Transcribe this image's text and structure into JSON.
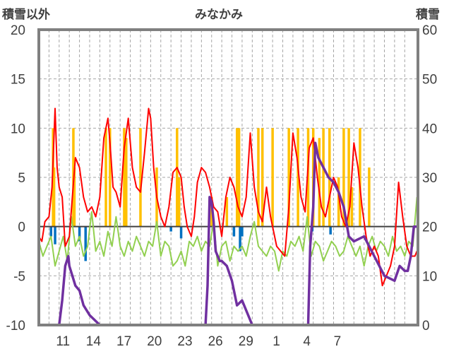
{
  "chart_data": {
    "type": "bar+line",
    "title": "みなかみ",
    "ylabel_left": "積雪以外",
    "ylabel_right": "積雪",
    "ylim_left": [
      -10,
      20
    ],
    "ylim_right": [
      0,
      60
    ],
    "yticks_left": [
      "20",
      "15",
      "10",
      "5",
      "0",
      "-5",
      "-10"
    ],
    "yticks_right": [
      "60",
      "50",
      "40",
      "30",
      "20",
      "10",
      "0"
    ],
    "xticks": [
      "11",
      "14",
      "17",
      "20",
      "23",
      "26",
      "29",
      "1",
      "4",
      "7"
    ],
    "grid": "dashed",
    "colors": {
      "red": "#ff0000",
      "green": "#92d050",
      "purple": "#7030a0",
      "orange": "#ffc000",
      "blue": "#0070c0",
      "axis": "#808080"
    },
    "series": [
      {
        "type": "bar",
        "axis": "left",
        "color": "#ffc000",
        "x": [
          1.4,
          1.5,
          3.4,
          3.5,
          6.6,
          7.0,
          8.4,
          8.6,
          10.0,
          11.6,
          13.6,
          13.8,
          17.0,
          18.5,
          19.5,
          19.7,
          21.6,
          22.0,
          23.0,
          24.6,
          25.5,
          26.5,
          27.0,
          27.6,
          28.0,
          28.6,
          29.5,
          30.0,
          30.5,
          30.8,
          31.6,
          32.5
        ],
        "values": [
          10,
          6,
          10,
          6,
          10,
          10,
          10,
          9,
          10,
          6,
          10,
          5,
          3,
          3,
          10,
          10,
          10,
          10,
          10,
          10,
          10,
          10,
          10,
          9,
          10,
          10,
          5,
          10,
          10,
          4,
          10,
          6
        ]
      },
      {
        "type": "bar",
        "axis": "left",
        "color": "#0070c0",
        "x": [
          1.2,
          1.6,
          4.0,
          4.6,
          13.0,
          14.0,
          19.2,
          19.8,
          20.0,
          26.9,
          28.7
        ],
        "values": [
          -1.0,
          -1.8,
          -1.5,
          -3.5,
          -0.5,
          -1.2,
          -1.0,
          -2.5,
          -1.0,
          -0.5,
          -0.8
        ]
      },
      {
        "type": "line",
        "axis": "left",
        "color": "#92d050",
        "x": [
          0.0,
          0.4,
          0.8,
          1.2,
          1.6,
          2.0,
          2.4,
          2.8,
          3.2,
          3.6,
          4.0,
          4.4,
          4.8,
          5.2,
          5.6,
          6.0,
          6.4,
          6.8,
          7.2,
          7.6,
          8.0,
          8.4,
          8.8,
          9.2,
          9.6,
          10.0,
          10.4,
          10.8,
          11.2,
          11.6,
          12.0,
          12.4,
          12.8,
          13.2,
          13.6,
          14.0,
          14.4,
          14.8,
          15.2,
          15.6,
          16.0,
          16.4,
          16.8,
          17.2,
          17.6,
          18.0,
          18.4,
          18.8,
          19.2,
          19.6,
          20.0,
          20.4,
          20.8,
          21.2,
          21.6,
          22.0,
          22.4,
          22.8,
          23.2,
          23.6,
          24.0,
          24.4,
          24.8,
          25.2,
          25.6,
          26.0,
          26.4,
          26.8,
          27.2,
          27.6,
          28.0,
          28.4,
          28.8,
          29.2,
          29.6,
          30.0,
          30.4,
          30.8,
          31.2,
          31.6,
          32.0,
          32.4,
          32.8,
          33.2,
          33.6,
          34.0,
          34.4,
          34.8,
          35.2,
          35.6,
          36.0,
          36.4,
          36.8,
          37.2
        ],
        "values": [
          -1.5,
          -3.0,
          -2.0,
          -1.0,
          -4.0,
          -2.5,
          -1.0,
          -3.5,
          1.0,
          -2.0,
          -1.0,
          -3.0,
          -2.0,
          1.5,
          -2.5,
          -1.5,
          -3.0,
          -0.5,
          -2.0,
          1.0,
          -2.0,
          -3.0,
          -1.5,
          -2.5,
          -1.0,
          -2.0,
          -3.0,
          -1.5,
          -2.0,
          0.5,
          -3.0,
          -1.5,
          -2.0,
          -4.0,
          -3.5,
          -2.5,
          -4.0,
          -1.5,
          -2.0,
          -1.0,
          -2.5,
          -1.5,
          -2.0,
          0.5,
          -4.0,
          -2.0,
          -1.5,
          -3.5,
          -2.0,
          -2.5,
          -2.0,
          -3.0,
          -1.0,
          0.5,
          -2.0,
          -2.5,
          -3.0,
          -2.0,
          -2.5,
          -4.5,
          -2.5,
          -3.0,
          -1.5,
          -2.0,
          -1.0,
          -2.5,
          1.0,
          -3.0,
          -1.5,
          -2.0,
          -3.5,
          -2.5,
          -1.5,
          -2.0,
          -3.0,
          -2.5,
          -1.0,
          -2.0,
          -3.0,
          -2.0,
          -4.0,
          -2.0,
          -1.0,
          -2.5,
          -1.5,
          -2.0,
          -3.0,
          -1.0,
          -2.5,
          -2.0,
          -3.0,
          -1.5,
          -2.0,
          3.0
        ]
      },
      {
        "type": "line",
        "axis": "left",
        "color": "#ff0000",
        "x": [
          0.0,
          0.3,
          0.6,
          1.0,
          1.3,
          1.6,
          1.8,
          2.0,
          2.3,
          2.6,
          3.0,
          3.3,
          3.6,
          4.0,
          4.4,
          4.8,
          5.2,
          5.6,
          6.0,
          6.4,
          6.8,
          7.0,
          7.3,
          7.6,
          8.0,
          8.4,
          8.8,
          9.2,
          9.6,
          10.0,
          10.4,
          10.8,
          11.0,
          11.3,
          11.6,
          12.0,
          12.4,
          12.8,
          13.2,
          13.6,
          14.0,
          14.3,
          14.6,
          15.0,
          15.3,
          15.6,
          16.0,
          16.4,
          16.8,
          17.2,
          17.6,
          18.0,
          18.4,
          18.8,
          19.2,
          19.6,
          20.0,
          20.4,
          20.8,
          21.2,
          21.6,
          22.0,
          22.4,
          22.8,
          23.0,
          23.4,
          23.8,
          24.2,
          24.6,
          25.0,
          25.4,
          25.8,
          26.2,
          26.6,
          27.0,
          27.4,
          27.8,
          28.2,
          28.6,
          29.0,
          29.4,
          29.8,
          30.2,
          30.6,
          31.0,
          31.4,
          31.8,
          32.2,
          32.6,
          33.0,
          33.4,
          33.8,
          34.2,
          34.6,
          35.0,
          35.4,
          35.8,
          36.2,
          36.6,
          37.0,
          37.2
        ],
        "values": [
          -1.0,
          -1.5,
          0.5,
          1.0,
          4.0,
          12.0,
          6.0,
          4.0,
          3.0,
          -2.0,
          -1.0,
          3.0,
          7.0,
          6.0,
          3.0,
          1.5,
          2.0,
          1.0,
          3.0,
          9.0,
          11.0,
          8.5,
          4.0,
          3.5,
          2.0,
          8.0,
          11.0,
          6.0,
          4.0,
          3.5,
          7.5,
          12.0,
          11.0,
          6.0,
          3.0,
          1.0,
          0.0,
          2.0,
          5.5,
          6.0,
          5.0,
          2.0,
          0.0,
          -1.0,
          1.0,
          4.5,
          6.0,
          5.5,
          4.0,
          2.0,
          1.5,
          -1.0,
          3.0,
          5.0,
          4.0,
          2.0,
          1.0,
          3.0,
          9.5,
          4.0,
          1.5,
          0.5,
          4.0,
          1.0,
          0.0,
          -2.0,
          -2.5,
          -3.0,
          2.0,
          9.5,
          7.0,
          3.0,
          1.5,
          8.0,
          9.0,
          5.0,
          2.0,
          1.0,
          3.0,
          5.0,
          4.0,
          1.0,
          0.0,
          2.0,
          8.5,
          6.0,
          2.0,
          -1.0,
          -3.0,
          -2.0,
          -3.0,
          -6.0,
          -5.0,
          -4.0,
          -2.0,
          4.5,
          1.0,
          -2.0,
          -3.0,
          -3.0,
          -2.5
        ]
      },
      {
        "type": "line",
        "axis": "right",
        "color": "#7030a0",
        "x": [
          0.0,
          2.0,
          2.3,
          2.6,
          2.9,
          3.0,
          3.3,
          3.6,
          4.0,
          4.4,
          5.0,
          6.0,
          8.0,
          10.0,
          12.0,
          14.0,
          15.5,
          16.4,
          16.6,
          16.8,
          17.0,
          17.2,
          17.4,
          17.6,
          17.8,
          18.0,
          18.5,
          19.0,
          19.5,
          20.0,
          21.0,
          24.0,
          26.3,
          26.5,
          26.7,
          27.0,
          27.2,
          27.5,
          28.0,
          28.5,
          29.0,
          29.5,
          30.0,
          30.5,
          31.0,
          32.0,
          33.0,
          34.0,
          35.0,
          35.5,
          36.0,
          36.3,
          36.6,
          36.9,
          37.2
        ],
        "values": [
          0,
          0,
          5,
          12,
          14,
          12,
          10,
          8,
          7,
          4,
          2,
          0,
          0,
          0,
          0,
          0,
          0,
          0,
          8,
          26,
          25,
          21,
          15,
          14,
          13,
          13,
          12,
          9,
          4,
          5,
          0,
          0,
          0,
          0,
          16,
          24,
          37,
          34,
          32,
          30,
          29,
          27,
          24,
          18,
          17,
          18,
          14,
          10,
          9,
          12,
          11,
          11,
          14,
          20,
          20
        ]
      }
    ]
  }
}
